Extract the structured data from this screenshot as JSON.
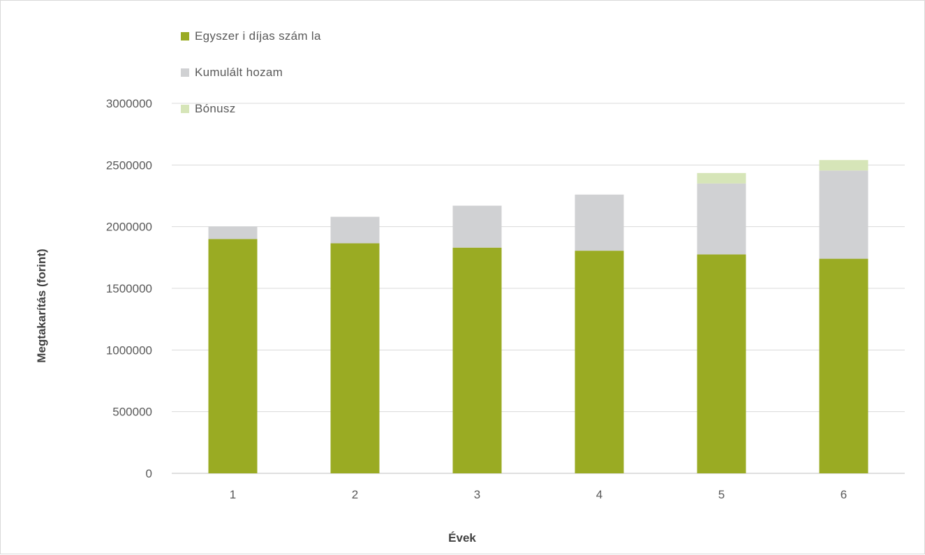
{
  "chart_data": {
    "type": "bar",
    "stacked": true,
    "categories": [
      "1",
      "2",
      "3",
      "4",
      "5",
      "6"
    ],
    "series": [
      {
        "name": "Egyszer i díjas szám la",
        "color": "#9aab23",
        "values": [
          1900000,
          1865000,
          1830000,
          1805000,
          1775000,
          1740000
        ]
      },
      {
        "name": "Kumulált hozam",
        "color": "#d0d1d3",
        "values": [
          100000,
          215000,
          340000,
          455000,
          575000,
          715000
        ]
      },
      {
        "name": "Bónusz",
        "color": "#d6e5b8",
        "values": [
          0,
          0,
          0,
          0,
          85000,
          85000
        ]
      }
    ],
    "xlabel": "Évek",
    "ylabel": "Megtakarítás (forint)",
    "ylim": [
      0,
      3000000
    ],
    "yticks": [
      "0",
      "500000",
      "1000000",
      "1500000",
      "2000000",
      "2500000",
      "3000000"
    ],
    "grid": true,
    "legend_position": "top-left"
  }
}
